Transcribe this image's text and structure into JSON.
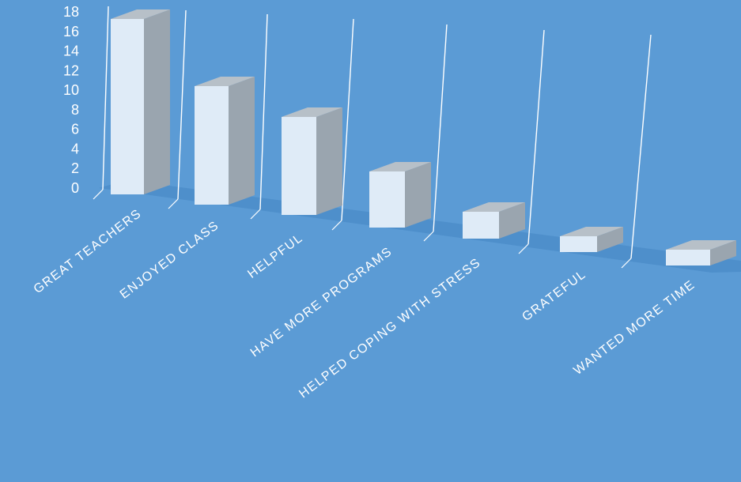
{
  "colors": {
    "background": "#5B9BD5",
    "bar_front": "#DFEBF7",
    "bar_side": "#9AA5AF",
    "bar_top": "#B7C0C8",
    "floor": "#4E8FCB",
    "grid": "#FFFFFF",
    "text": "#FFFFFF"
  },
  "chart_data": {
    "type": "bar",
    "view": "3d-perspective",
    "title": "",
    "xlabel": "",
    "ylabel": "",
    "ylim": [
      0,
      18
    ],
    "yticks": [
      0,
      2,
      4,
      6,
      8,
      10,
      12,
      14,
      16,
      18
    ],
    "grid": false,
    "categories": [
      "GREAT TEACHERS",
      "ENJOYED CLASS",
      "HELPFUL",
      "HAVE MORE PROGRAMS",
      "HELPED COPING WITH STRESS",
      "GRATEFUL",
      "WANTED MORE TIME"
    ],
    "values": [
      17,
      11,
      9,
      5,
      2,
      1,
      1
    ]
  }
}
